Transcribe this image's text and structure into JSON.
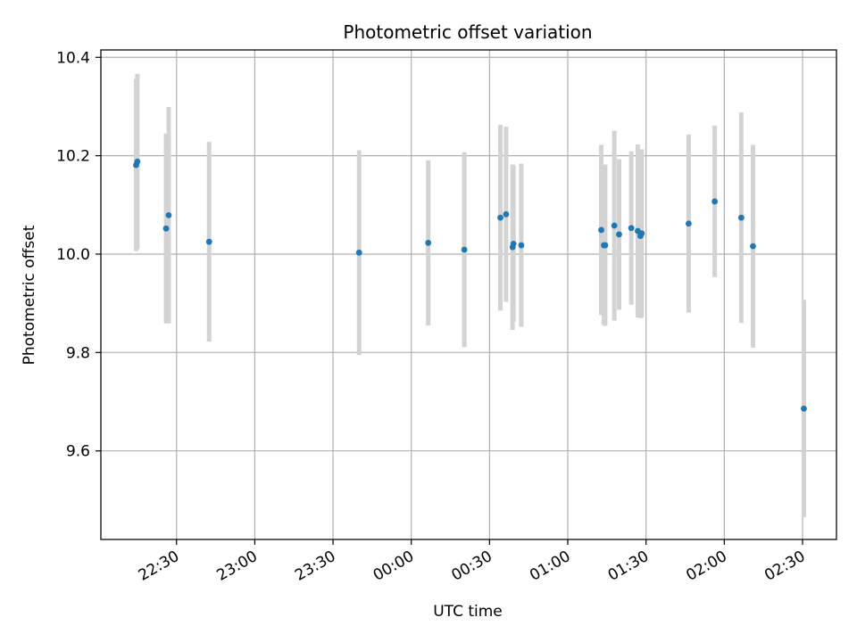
{
  "chart_data": {
    "type": "scatter",
    "title": "Photometric offset variation",
    "xlabel": "UTC time",
    "ylabel": "Photometric offset",
    "grid": true,
    "x_tick_labels": [
      "22:30",
      "23:00",
      "23:30",
      "00:00",
      "00:30",
      "01:00",
      "01:30",
      "02:00",
      "02:30"
    ],
    "xlim": [
      "22:01",
      "02:43"
    ],
    "ylim": [
      9.42,
      10.415
    ],
    "y_ticks": [
      9.6,
      9.8,
      10.0,
      10.2,
      10.4
    ],
    "y_tick_labels": [
      "9.6",
      "9.8",
      "10.0",
      "10.2",
      "10.4"
    ],
    "colors": {
      "marker": "#1f77b4",
      "errorbar": "#d3d3d3",
      "grid": "#b0b0b0"
    },
    "series": [
      {
        "points": [
          {
            "x": "22:14:30",
            "y": 10.181,
            "err": 0.175
          },
          {
            "x": "22:15:00",
            "y": 10.188,
            "err": 0.178
          },
          {
            "x": "22:26:00",
            "y": 10.052,
            "err": 0.193
          },
          {
            "x": "22:27:00",
            "y": 10.079,
            "err": 0.22
          },
          {
            "x": "22:42:30",
            "y": 10.025,
            "err": 0.203
          },
          {
            "x": "23:40:00",
            "y": 10.003,
            "err": 0.208
          },
          {
            "x": "00:06:30",
            "y": 10.023,
            "err": 0.168
          },
          {
            "x": "00:20:20",
            "y": 10.009,
            "err": 0.198
          },
          {
            "x": "00:34:10",
            "y": 10.074,
            "err": 0.189
          },
          {
            "x": "00:36:20",
            "y": 10.081,
            "err": 0.178
          },
          {
            "x": "00:38:50",
            "y": 10.014,
            "err": 0.168
          },
          {
            "x": "00:39:10",
            "y": 10.021,
            "err": 0.159
          },
          {
            "x": "00:42:10",
            "y": 10.018,
            "err": 0.166
          },
          {
            "x": "01:12:50",
            "y": 10.049,
            "err": 0.173
          },
          {
            "x": "01:13:50",
            "y": 10.018,
            "err": 0.162
          },
          {
            "x": "01:14:20",
            "y": 10.018,
            "err": 0.164
          },
          {
            "x": "01:17:50",
            "y": 10.058,
            "err": 0.193
          },
          {
            "x": "01:19:40",
            "y": 10.04,
            "err": 0.153
          },
          {
            "x": "01:24:20",
            "y": 10.053,
            "err": 0.156
          },
          {
            "x": "01:26:50",
            "y": 10.047,
            "err": 0.176
          },
          {
            "x": "01:27:50",
            "y": 10.037,
            "err": 0.167
          },
          {
            "x": "01:28:20",
            "y": 10.042,
            "err": 0.171
          },
          {
            "x": "01:46:20",
            "y": 10.062,
            "err": 0.181
          },
          {
            "x": "01:56:20",
            "y": 10.107,
            "err": 0.154
          },
          {
            "x": "02:06:30",
            "y": 10.074,
            "err": 0.214
          },
          {
            "x": "02:11:00",
            "y": 10.016,
            "err": 0.206
          },
          {
            "x": "02:30:30",
            "y": 9.686,
            "err": 0.221
          }
        ]
      }
    ]
  }
}
